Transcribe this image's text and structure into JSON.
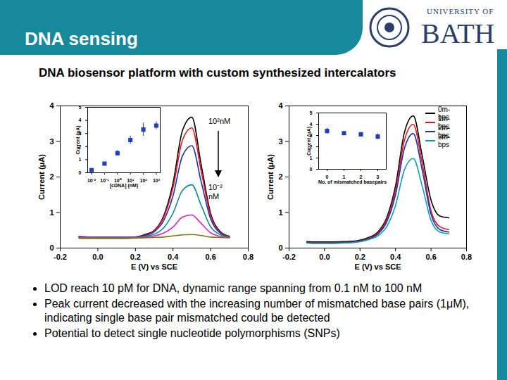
{
  "slide": {
    "header": "DNA sensing",
    "subtitle": "DNA biosensor platform with custom synthesized intercalators",
    "logo": [
      "UNIVERSITY OF",
      "BATH"
    ],
    "bullets": [
      "LOD reach 10 pM for DNA, dynamic range spanning from 0.1 nM to 100 nM",
      "Peak current decreased with the increasing number of mismatched base pairs (1μM), indicating single base pair mismatched could be detected",
      "Potential to detect single nucleotide polymorphisms (SNPs)"
    ]
  },
  "chart_data": [
    {
      "type": "line",
      "xlabel": "E (V) vs SCE",
      "ylabel": "Current (μA)",
      "annotations": [
        "10²nM",
        "10⁻² nM"
      ],
      "x": [
        -0.1,
        -0.05,
        0,
        0.05,
        0.1,
        0.15,
        0.2,
        0.25,
        0.3,
        0.35,
        0.4,
        0.45,
        0.5,
        0.55,
        0.6,
        0.65,
        0.7
      ],
      "series": [
        {
          "color": "#000000",
          "values": [
            0.32,
            0.31,
            0.3,
            0.3,
            0.3,
            0.3,
            0.31,
            0.38,
            0.5,
            0.9,
            1.83,
            3.3,
            3.68,
            2.34,
            0.98,
            0.47,
            0.33
          ]
        },
        {
          "color": "#e8141c",
          "values": [
            0.32,
            0.31,
            0.3,
            0.3,
            0.3,
            0.3,
            0.31,
            0.36,
            0.49,
            0.86,
            1.7,
            3.03,
            3.38,
            2.16,
            0.92,
            0.45,
            0.33
          ]
        },
        {
          "color": "#1c2fb8",
          "values": [
            0.31,
            0.3,
            0.3,
            0.3,
            0.3,
            0.3,
            0.31,
            0.35,
            0.46,
            0.77,
            1.47,
            2.59,
            2.88,
            1.86,
            0.82,
            0.43,
            0.32
          ]
        },
        {
          "color": "#108a8a",
          "values": [
            0.3,
            0.3,
            0.29,
            0.29,
            0.29,
            0.29,
            0.3,
            0.33,
            0.39,
            0.57,
            0.98,
            1.62,
            1.78,
            1.2,
            0.6,
            0.38,
            0.31
          ]
        },
        {
          "color": "#e020c8",
          "values": [
            0.29,
            0.29,
            0.28,
            0.28,
            0.28,
            0.28,
            0.29,
            0.31,
            0.34,
            0.42,
            0.59,
            0.87,
            0.93,
            0.69,
            0.43,
            0.33,
            0.3
          ]
        },
        {
          "color": "#7a7a10",
          "values": [
            0.27,
            0.27,
            0.27,
            0.27,
            0.27,
            0.27,
            0.28,
            0.29,
            0.3,
            0.31,
            0.34,
            0.37,
            0.38,
            0.35,
            0.31,
            0.3,
            0.29
          ]
        }
      ],
      "xlim": [
        -0.2,
        0.8
      ],
      "xticks": [
        -0.2,
        {
          "value": 0,
          "label": "0.0"
        },
        0.2,
        0.4,
        0.6,
        0.8
      ],
      "ylim": [
        0,
        4
      ],
      "yticks": [
        0,
        1,
        2,
        3,
        4
      ],
      "grid": false
    },
    {
      "type": "scatter",
      "xlabel": "[cDNA] (nM)",
      "ylabel": "Current (μA)",
      "log": "x",
      "marker": "square",
      "color": "#1f3fbf",
      "x": [
        0.01,
        0.1,
        1,
        10,
        100,
        1000
      ],
      "values": [
        0.2,
        0.7,
        1.5,
        2.5,
        3.3,
        3.6
      ],
      "errors": [
        0.1,
        0.1,
        0.2,
        0.3,
        0.5,
        0.3
      ],
      "xlim": [
        0.005,
        2000
      ],
      "xticks": [
        {
          "value": 0.01,
          "label": "10⁻²"
        },
        {
          "value": 0.1,
          "label": "10⁻¹"
        },
        {
          "value": 1,
          "label": "10⁰"
        },
        {
          "value": 10,
          "label": "10¹"
        },
        {
          "value": 100,
          "label": "10²"
        },
        {
          "value": 1000,
          "label": "10³"
        }
      ],
      "ylim": [
        0,
        5
      ],
      "yticks": [
        0,
        1,
        2,
        3,
        4,
        5
      ],
      "grid": false
    },
    {
      "type": "line",
      "xlabel": "E (V) vs SCE",
      "ylabel": "Current (μA)",
      "legend": "upper right",
      "x": [
        -0.1,
        -0.05,
        0,
        0.05,
        0.1,
        0.15,
        0.2,
        0.25,
        0.3,
        0.35,
        0.4,
        0.45,
        0.5,
        0.55,
        0.6,
        0.65,
        0.7
      ],
      "series": [
        {
          "name": "0m-bps",
          "color": "#000000",
          "values": [
            0.18,
            0.17,
            0.17,
            0.17,
            0.18,
            0.19,
            0.22,
            0.3,
            0.45,
            0.85,
            1.75,
            3.25,
            3.72,
            2.6,
            1.35,
            0.9,
            0.85
          ]
        },
        {
          "name": "1m-bps",
          "color": "#e8141c",
          "values": [
            0.16,
            0.15,
            0.15,
            0.15,
            0.16,
            0.17,
            0.2,
            0.28,
            0.42,
            0.79,
            1.63,
            3.03,
            3.48,
            2.4,
            1.05,
            0.6,
            0.52
          ]
        },
        {
          "name": "2m-bps",
          "color": "#1c2fb8",
          "values": [
            0.15,
            0.14,
            0.14,
            0.14,
            0.15,
            0.16,
            0.19,
            0.26,
            0.39,
            0.73,
            1.5,
            2.8,
            3.22,
            2.2,
            0.95,
            0.52,
            0.45
          ]
        },
        {
          "name": "3m-bps",
          "color": "#10a0a8",
          "values": [
            0.14,
            0.13,
            0.13,
            0.13,
            0.14,
            0.15,
            0.18,
            0.24,
            0.34,
            0.6,
            1.2,
            2.2,
            2.52,
            1.75,
            0.78,
            0.45,
            0.4
          ]
        }
      ],
      "xlim": [
        -0.2,
        0.8
      ],
      "xticks": [
        -0.2,
        {
          "value": 0,
          "label": "0.0"
        },
        0.2,
        0.4,
        0.6,
        0.8
      ],
      "ylim": [
        0,
        4
      ],
      "yticks": [
        0,
        1,
        2,
        3,
        4
      ],
      "grid": false
    },
    {
      "type": "scatter",
      "xlabel": "No. of mismatched basepairs",
      "ylabel": "Current (μA)",
      "marker": "square",
      "color": "#1f3fbf",
      "x": [
        0,
        1,
        2,
        3
      ],
      "values": [
        3.4,
        3.2,
        3.1,
        2.9
      ],
      "errors": [
        0.25,
        0.15,
        0.15,
        0.25
      ],
      "xlim": [
        -0.5,
        3.5
      ],
      "xticks": [
        0,
        1,
        2,
        3
      ],
      "ylim": [
        0,
        5
      ],
      "yticks": [
        0,
        1,
        2,
        3,
        4,
        5
      ],
      "grid": false
    }
  ]
}
